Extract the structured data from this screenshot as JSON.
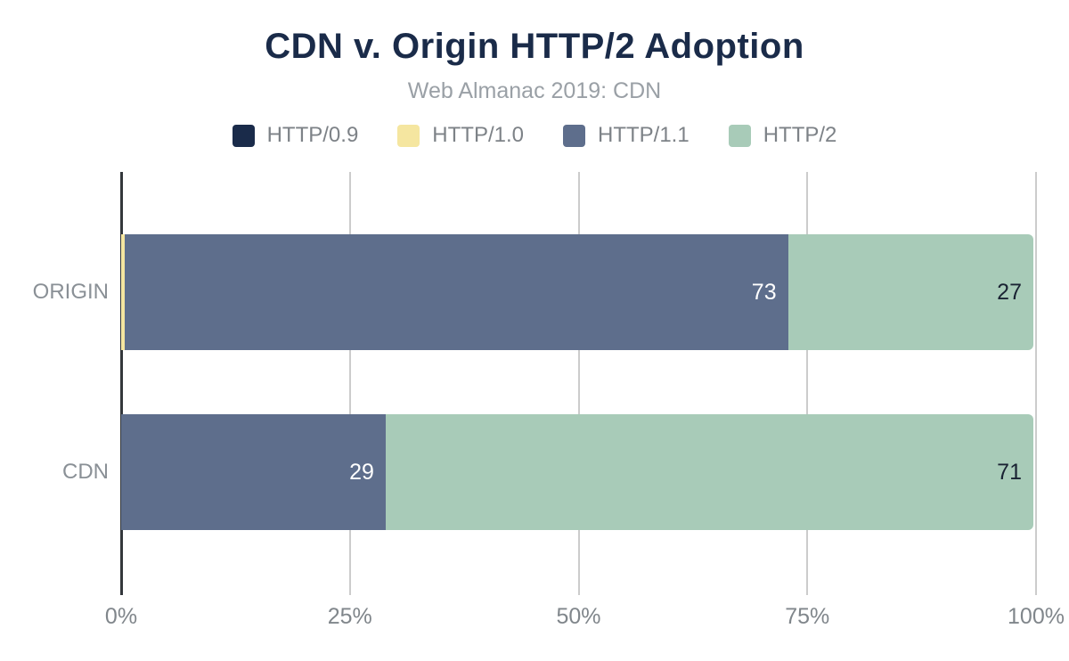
{
  "header": {
    "title": "CDN v. Origin HTTP/2 Adoption",
    "subtitle": "Web Almanac 2019: CDN"
  },
  "colors": {
    "title_text": "#1a2b49",
    "subtitle_text": "#9aa0a6",
    "legend_text": "#7d8287",
    "axis_text": "#80868b",
    "gridline": "#cccccc",
    "axis_line": "#33373b",
    "value_label_light": "#ffffff",
    "value_label_dark": "#1a2333"
  },
  "chart_data": {
    "type": "bar",
    "orientation": "horizontal",
    "stacked": true,
    "title": "CDN v. Origin HTTP/2 Adoption",
    "subtitle": "Web Almanac 2019: CDN",
    "categories": [
      "ORIGIN",
      "CDN"
    ],
    "series": [
      {
        "name": "HTTP/0.9",
        "color": "#1a2b4a",
        "values": [
          0,
          0
        ]
      },
      {
        "name": "HTTP/1.0",
        "color": "#f5e6a0",
        "values": [
          0.4,
          0
        ]
      },
      {
        "name": "HTTP/1.1",
        "color": "#5e6e8c",
        "values": [
          73,
          29
        ]
      },
      {
        "name": "HTTP/2",
        "color": "#a8cbb8",
        "values": [
          27,
          71
        ]
      }
    ],
    "value_labels": [
      "73",
      "27",
      "29",
      "71"
    ],
    "value_label_min": 5,
    "xlim": [
      0,
      100
    ],
    "xticks": [
      {
        "value": 0,
        "label": "0%"
      },
      {
        "value": 25,
        "label": "25%"
      },
      {
        "value": 50,
        "label": "50%"
      },
      {
        "value": 75,
        "label": "75%"
      },
      {
        "value": 100,
        "label": "100%"
      }
    ],
    "legend_position": "top",
    "grid": "vertical"
  }
}
